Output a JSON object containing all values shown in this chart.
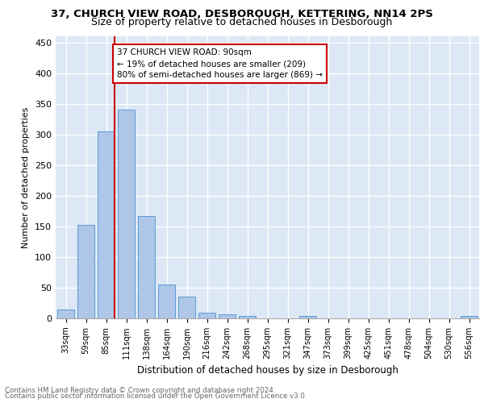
{
  "title1": "37, CHURCH VIEW ROAD, DESBOROUGH, KETTERING, NN14 2PS",
  "title2": "Size of property relative to detached houses in Desborough",
  "xlabel": "Distribution of detached houses by size in Desborough",
  "ylabel": "Number of detached properties",
  "bar_labels": [
    "33sqm",
    "59sqm",
    "85sqm",
    "111sqm",
    "138sqm",
    "164sqm",
    "190sqm",
    "216sqm",
    "242sqm",
    "268sqm",
    "295sqm",
    "321sqm",
    "347sqm",
    "373sqm",
    "399sqm",
    "425sqm",
    "451sqm",
    "478sqm",
    "504sqm",
    "530sqm",
    "556sqm"
  ],
  "bar_values": [
    15,
    152,
    305,
    340,
    167,
    55,
    35,
    9,
    7,
    4,
    0,
    0,
    4,
    0,
    0,
    0,
    0,
    0,
    0,
    0,
    4
  ],
  "bar_color": "#aec6e8",
  "bar_edge_color": "#5b9bd5",
  "vline_x": 2.43,
  "vline_color": "#cc0000",
  "annotation_text": "37 CHURCH VIEW ROAD: 90sqm\n← 19% of detached houses are smaller (209)\n80% of semi-detached houses are larger (869) →",
  "annotation_box_color": "#ffffff",
  "annotation_box_edge": "#cc0000",
  "ylim": [
    0,
    460
  ],
  "yticks": [
    0,
    50,
    100,
    150,
    200,
    250,
    300,
    350,
    400,
    450
  ],
  "footer1": "Contains HM Land Registry data © Crown copyright and database right 2024.",
  "footer2": "Contains public sector information licensed under the Open Government Licence v3.0.",
  "plot_bg": "#dce8f5"
}
